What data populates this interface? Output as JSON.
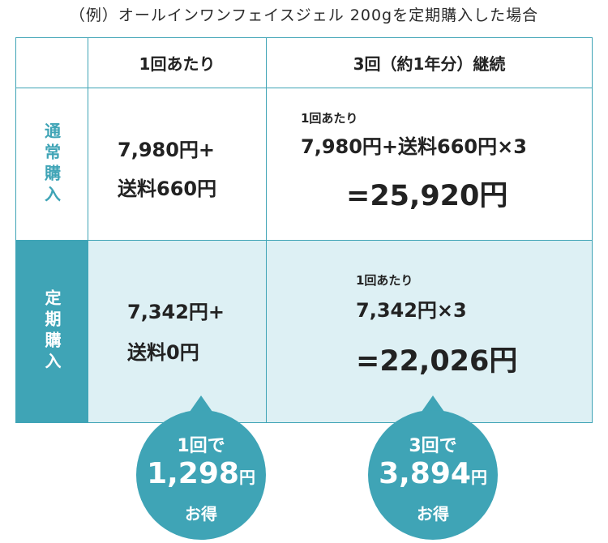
{
  "caption": "（例）オールインワンフェイスジェル 200gを定期購入した場合",
  "colors": {
    "accent": "#3fa4b6",
    "accent_light": "#ddf0f4",
    "text": "#222222"
  },
  "table": {
    "headers": {
      "blank": "",
      "per_time": "1回あたり",
      "three_times": "3回（約1年分）継続"
    },
    "regular": {
      "label": "通常購入",
      "per_time_line1": "7,980円+",
      "per_time_line2": "送料660円",
      "three_note": "1回あたり",
      "three_formula": "7,980円+送料660円×3",
      "three_total": "=25,920円"
    },
    "subscription": {
      "label": "定期購入",
      "per_time_line1": "7,342円+",
      "per_time_line2": "送料0円",
      "three_note": "1回あたり",
      "three_formula": "7,342円×3",
      "three_total": "=22,026円"
    }
  },
  "savings": [
    {
      "prefix": "1回で",
      "amount": "1,298",
      "unit": "円",
      "suffix": "お得"
    },
    {
      "prefix": "3回で",
      "amount": "3,894",
      "unit": "円",
      "suffix": "お得"
    }
  ]
}
